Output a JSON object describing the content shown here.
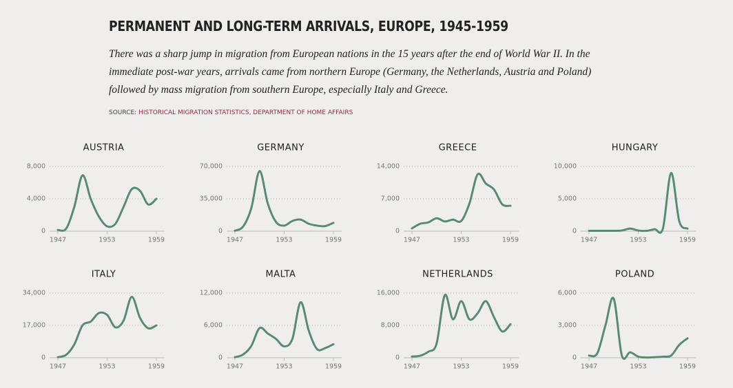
{
  "header": {
    "title": "PERMANENT AND LONG-TERM ARRIVALS, EUROPE, 1945-1959",
    "subtitle": "There was a sharp jump in migration from European nations in the 15 years after the end of World War II. In the immediate post-war years, arrivals came from northern Europe (Germany, the Netherlands, Austria and Poland) followed by mass migration from southern Europe, especially Italy and Greece.",
    "source_label": "SOURCE:",
    "source": "HISTORICAL MIGRATION STATISTICS, DEPARTMENT OF HOME AFFAIRS"
  },
  "chart_data": [
    {
      "type": "line",
      "title": "AUSTRIA",
      "color": "#5b8a72",
      "x": [
        1947,
        1948,
        1949,
        1950,
        1951,
        1952,
        1953,
        1954,
        1955,
        1956,
        1957,
        1958,
        1959
      ],
      "values": [
        150,
        300,
        3000,
        6900,
        4000,
        1800,
        600,
        900,
        3000,
        5200,
        5000,
        3300,
        4000
      ],
      "xlim": [
        1947,
        1959
      ],
      "xticks": [
        1947,
        1953,
        1959
      ],
      "ylim": [
        0,
        8000
      ],
      "yticks": [
        0,
        {
          "value": 4000,
          "label": "4,000"
        },
        {
          "value": 8000,
          "label": "8,000"
        }
      ]
    },
    {
      "type": "line",
      "title": "GERMANY",
      "color": "#5b8a72",
      "x": [
        1947,
        1948,
        1949,
        1950,
        1951,
        1952,
        1953,
        1954,
        1955,
        1956,
        1957,
        1958,
        1959
      ],
      "values": [
        500,
        5000,
        25000,
        65000,
        30000,
        10000,
        6000,
        11000,
        12500,
        8000,
        6000,
        5500,
        9000
      ],
      "xlim": [
        1947,
        1959
      ],
      "xticks": [
        1947,
        1953,
        1959
      ],
      "ylim": [
        0,
        70000
      ],
      "yticks": [
        0,
        {
          "value": 35000,
          "label": "35,000"
        },
        {
          "value": 70000,
          "label": "70,000"
        }
      ]
    },
    {
      "type": "line",
      "title": "GREECE",
      "color": "#5b8a72",
      "x": [
        1947,
        1948,
        1949,
        1950,
        1951,
        1952,
        1953,
        1954,
        1955,
        1956,
        1957,
        1958,
        1959
      ],
      "values": [
        600,
        1600,
        1900,
        2800,
        2100,
        2500,
        2200,
        6000,
        12300,
        10300,
        9000,
        5800,
        5500
      ],
      "xlim": [
        1947,
        1959
      ],
      "xticks": [
        1947,
        1953,
        1959
      ],
      "ylim": [
        0,
        14000
      ],
      "yticks": [
        0,
        {
          "value": 7000,
          "label": "7,000"
        },
        {
          "value": 14000,
          "label": "14,000"
        }
      ]
    },
    {
      "type": "line",
      "title": "HUNGARY",
      "color": "#5b8a72",
      "x": [
        1947,
        1948,
        1949,
        1950,
        1951,
        1952,
        1953,
        1954,
        1955,
        1956,
        1957,
        1958,
        1959
      ],
      "values": [
        50,
        50,
        50,
        50,
        100,
        400,
        100,
        50,
        300,
        400,
        9000,
        1500,
        400
      ],
      "xlim": [
        1947,
        1959
      ],
      "xticks": [
        1947,
        1953,
        1959
      ],
      "ylim": [
        0,
        10000
      ],
      "yticks": [
        0,
        {
          "value": 5000,
          "label": "5,000"
        },
        {
          "value": 10000,
          "label": "10,000"
        }
      ]
    },
    {
      "type": "line",
      "title": "ITALY",
      "color": "#5b8a72",
      "x": [
        1947,
        1948,
        1949,
        1950,
        1951,
        1952,
        1953,
        1954,
        1955,
        1956,
        1957,
        1958,
        1959
      ],
      "values": [
        300,
        1500,
        7000,
        17000,
        19000,
        23500,
        22500,
        16000,
        19500,
        32000,
        21000,
        15500,
        17000
      ],
      "xlim": [
        1947,
        1959
      ],
      "xticks": [
        1947,
        1953,
        1959
      ],
      "ylim": [
        0,
        34000
      ],
      "yticks": [
        0,
        {
          "value": 17000,
          "label": "17,000"
        },
        {
          "value": 34000,
          "label": "34,000"
        }
      ]
    },
    {
      "type": "line",
      "title": "MALTA",
      "color": "#5b8a72",
      "x": [
        1947,
        1948,
        1949,
        1950,
        1951,
        1952,
        1953,
        1954,
        1955,
        1956,
        1957,
        1958,
        1959
      ],
      "values": [
        100,
        600,
        2200,
        5500,
        4500,
        3500,
        2100,
        3500,
        10300,
        5000,
        1600,
        1800,
        2500
      ],
      "xlim": [
        1947,
        1959
      ],
      "xticks": [
        1947,
        1953,
        1959
      ],
      "ylim": [
        0,
        12000
      ],
      "yticks": [
        0,
        {
          "value": 6000,
          "label": "6,000"
        },
        {
          "value": 12000,
          "label": "12,000"
        }
      ]
    },
    {
      "type": "line",
      "title": "NETHERLANDS",
      "color": "#5b8a72",
      "x": [
        1947,
        1948,
        1949,
        1950,
        1951,
        1952,
        1953,
        1954,
        1955,
        1956,
        1957,
        1958,
        1959
      ],
      "values": [
        300,
        500,
        1500,
        3500,
        15500,
        9500,
        14000,
        9500,
        11000,
        14000,
        10000,
        6500,
        8300
      ],
      "xlim": [
        1947,
        1959
      ],
      "xticks": [
        1947,
        1953,
        1959
      ],
      "ylim": [
        0,
        16000
      ],
      "yticks": [
        0,
        {
          "value": 8000,
          "label": "8,000"
        },
        {
          "value": 16000,
          "label": "16,000"
        }
      ]
    },
    {
      "type": "line",
      "title": "POLAND",
      "color": "#5b8a72",
      "x": [
        1947,
        1948,
        1949,
        1950,
        1951,
        1952,
        1953,
        1954,
        1955,
        1956,
        1957,
        1958,
        1959
      ],
      "values": [
        200,
        400,
        3000,
        5500,
        200,
        500,
        100,
        20,
        50,
        100,
        200,
        1200,
        1800
      ],
      "xlim": [
        1947,
        1959
      ],
      "xticks": [
        1947,
        1953,
        1959
      ],
      "ylim": [
        0,
        6000
      ],
      "yticks": [
        0,
        {
          "value": 3000,
          "label": "3,000"
        },
        {
          "value": 6000,
          "label": "6,000"
        }
      ]
    }
  ]
}
